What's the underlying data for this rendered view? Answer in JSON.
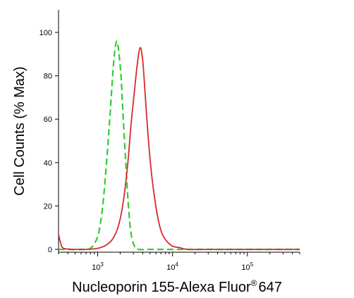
{
  "chart_data": {
    "type": "line",
    "xlabel": "Nucleoporin 155-Alexa Fluor",
    "xlabel_superscript": "®",
    "xlabel_suffix": "647",
    "ylabel": "Cell Counts (% Max)",
    "x_scale": "log",
    "xlim": [
      300,
      500000
    ],
    "ylim": [
      0,
      100
    ],
    "y_ticks": [
      "0",
      "20",
      "40",
      "60",
      "80",
      "100"
    ],
    "y_tick_values": [
      0,
      20,
      40,
      60,
      80,
      100
    ],
    "x_ticks": [
      {
        "value": 1000,
        "base": "10",
        "exp": "3"
      },
      {
        "value": 10000,
        "base": "10",
        "exp": "4"
      },
      {
        "value": 100000,
        "base": "10",
        "exp": "5"
      }
    ],
    "grid": false,
    "legend": "none",
    "series": [
      {
        "color": "#33cc33",
        "style": "dashed",
        "points": [
          [
            300,
            0
          ],
          [
            600,
            0
          ],
          [
            800,
            0.5
          ],
          [
            1000,
            6
          ],
          [
            1150,
            18
          ],
          [
            1300,
            38
          ],
          [
            1450,
            60
          ],
          [
            1600,
            82
          ],
          [
            1700,
            92
          ],
          [
            1800,
            96
          ],
          [
            1900,
            92
          ],
          [
            2050,
            80
          ],
          [
            2200,
            60
          ],
          [
            2400,
            37
          ],
          [
            2600,
            18
          ],
          [
            2800,
            7
          ],
          [
            3100,
            1.5
          ],
          [
            3500,
            0
          ],
          [
            5000,
            0
          ],
          [
            10000,
            0
          ],
          [
            20000,
            0
          ],
          [
            500000,
            0
          ]
        ]
      },
      {
        "color": "#d62a2a",
        "style": "solid",
        "points": [
          [
            300,
            7
          ],
          [
            320,
            3
          ],
          [
            350,
            0.5
          ],
          [
            500,
            0
          ],
          [
            700,
            0
          ],
          [
            1000,
            0.5
          ],
          [
            1300,
            2
          ],
          [
            1600,
            5
          ],
          [
            1900,
            11
          ],
          [
            2200,
            22
          ],
          [
            2500,
            38
          ],
          [
            2800,
            58
          ],
          [
            3100,
            73
          ],
          [
            3400,
            86
          ],
          [
            3700,
            93
          ],
          [
            4000,
            87
          ],
          [
            4300,
            72
          ],
          [
            4700,
            53
          ],
          [
            5200,
            36
          ],
          [
            5800,
            23
          ],
          [
            6500,
            13
          ],
          [
            7300,
            7
          ],
          [
            8500,
            3.5
          ],
          [
            10000,
            1.5
          ],
          [
            12500,
            0.8
          ],
          [
            16000,
            0
          ],
          [
            30000,
            0
          ],
          [
            500000,
            0
          ]
        ]
      }
    ]
  }
}
